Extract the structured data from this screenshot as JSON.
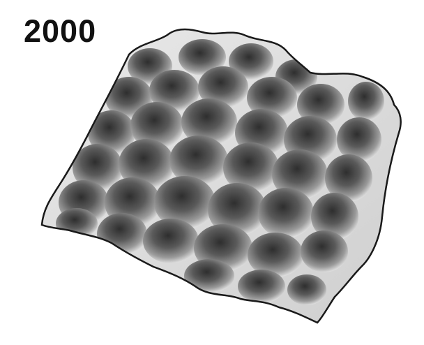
{
  "figure": {
    "label": "2000",
    "colors": {
      "background": "#ffffff",
      "surface_light": "#f4f4f4",
      "surface_mid": "#9a9a9a",
      "surface_dark": "#3a3a3a",
      "label": "#111111"
    }
  }
}
